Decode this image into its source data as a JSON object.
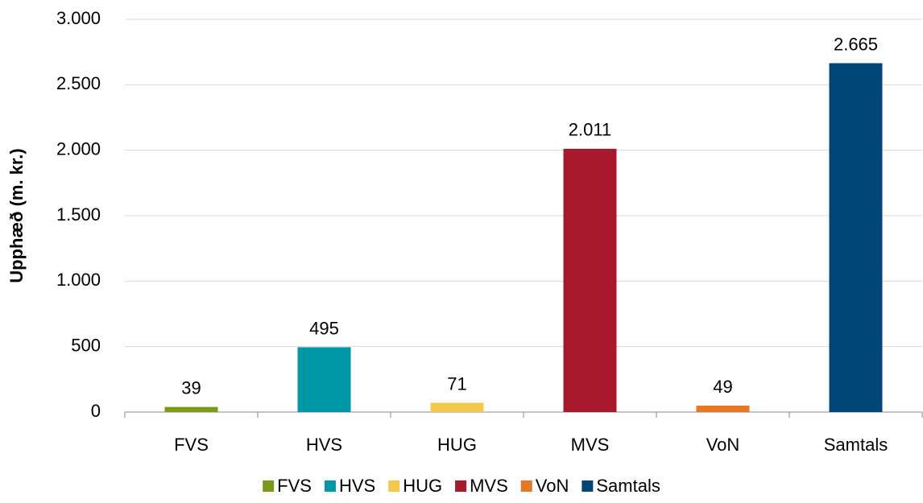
{
  "chart_data": {
    "type": "bar",
    "y_label": "Upphæð (m. kr.)",
    "categories": [
      "FVS",
      "HVS",
      "HUG",
      "MVS",
      "VoN",
      "Samtals"
    ],
    "values": [
      39,
      495,
      71,
      2011,
      49,
      2665
    ],
    "value_labels": [
      "39",
      "495",
      "71",
      "2.011",
      "49",
      "2.665"
    ],
    "colors": [
      "#7a9a1a",
      "#0097a7",
      "#f2c94c",
      "#a8192e",
      "#e87722",
      "#004677"
    ],
    "ylim": [
      0,
      3000
    ],
    "yticks": [
      0,
      500,
      {
        "value": 1000,
        "label": "1.000"
      },
      {
        "value": 1500,
        "label": "1.500"
      },
      {
        "value": 2000,
        "label": "2.000"
      },
      {
        "value": 2500,
        "label": "2.500"
      },
      {
        "value": 3000,
        "label": "3.000"
      }
    ],
    "grid": true,
    "legend": "bottom"
  }
}
